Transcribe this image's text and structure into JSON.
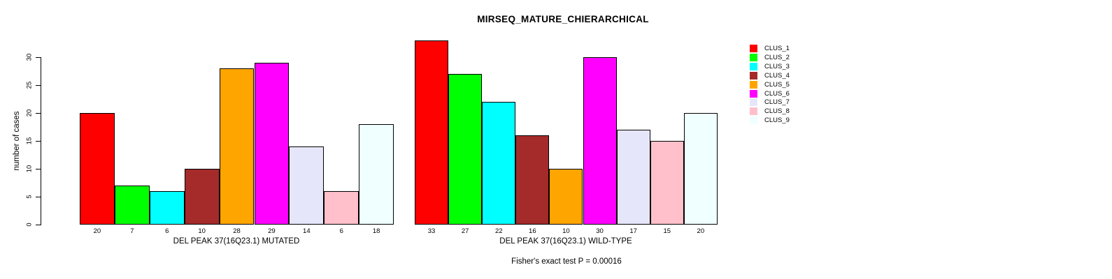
{
  "chart_data": {
    "type": "bar",
    "title": "MIRSEQ_MATURE_CHIERARCHICAL",
    "ylabel": "number of cases",
    "ylim": [
      0,
      30
    ],
    "yticks": [
      0,
      5,
      10,
      15,
      20,
      25,
      30
    ],
    "grid": false,
    "legend": {
      "position": "right",
      "entries": [
        {
          "label": "CLUS_1",
          "color": "#FF0000"
        },
        {
          "label": "CLUS_2",
          "color": "#00FF00"
        },
        {
          "label": "CLUS_3",
          "color": "#00FFFF"
        },
        {
          "label": "CLUS_4",
          "color": "#A52A2A"
        },
        {
          "label": "CLUS_5",
          "color": "#FFA500"
        },
        {
          "label": "CLUS_6",
          "color": "#FF00FF"
        },
        {
          "label": "CLUS_7",
          "color": "#E6E6FA"
        },
        {
          "label": "CLUS_8",
          "color": "#FFC0CB"
        },
        {
          "label": "CLUS_9",
          "color": "#F0FFFF"
        }
      ]
    },
    "groups": [
      {
        "xlabel": "DEL PEAK 37(16Q23.1) MUTATED",
        "categories": [
          "20",
          "7",
          "6",
          "10",
          "28",
          "29",
          "14",
          "6",
          "18"
        ],
        "values": [
          20,
          7,
          6,
          10,
          28,
          29,
          14,
          6,
          18
        ]
      },
      {
        "xlabel": "DEL PEAK 37(16Q23.1) WILD-TYPE",
        "categories": [
          "33",
          "27",
          "22",
          "16",
          "10",
          "30",
          "17",
          "15",
          "20"
        ],
        "values": [
          33,
          27,
          22,
          16,
          10,
          30,
          17,
          15,
          20
        ]
      }
    ]
  },
  "footer": {
    "fisher_text": "Fisher's exact test P = 0.00016"
  }
}
